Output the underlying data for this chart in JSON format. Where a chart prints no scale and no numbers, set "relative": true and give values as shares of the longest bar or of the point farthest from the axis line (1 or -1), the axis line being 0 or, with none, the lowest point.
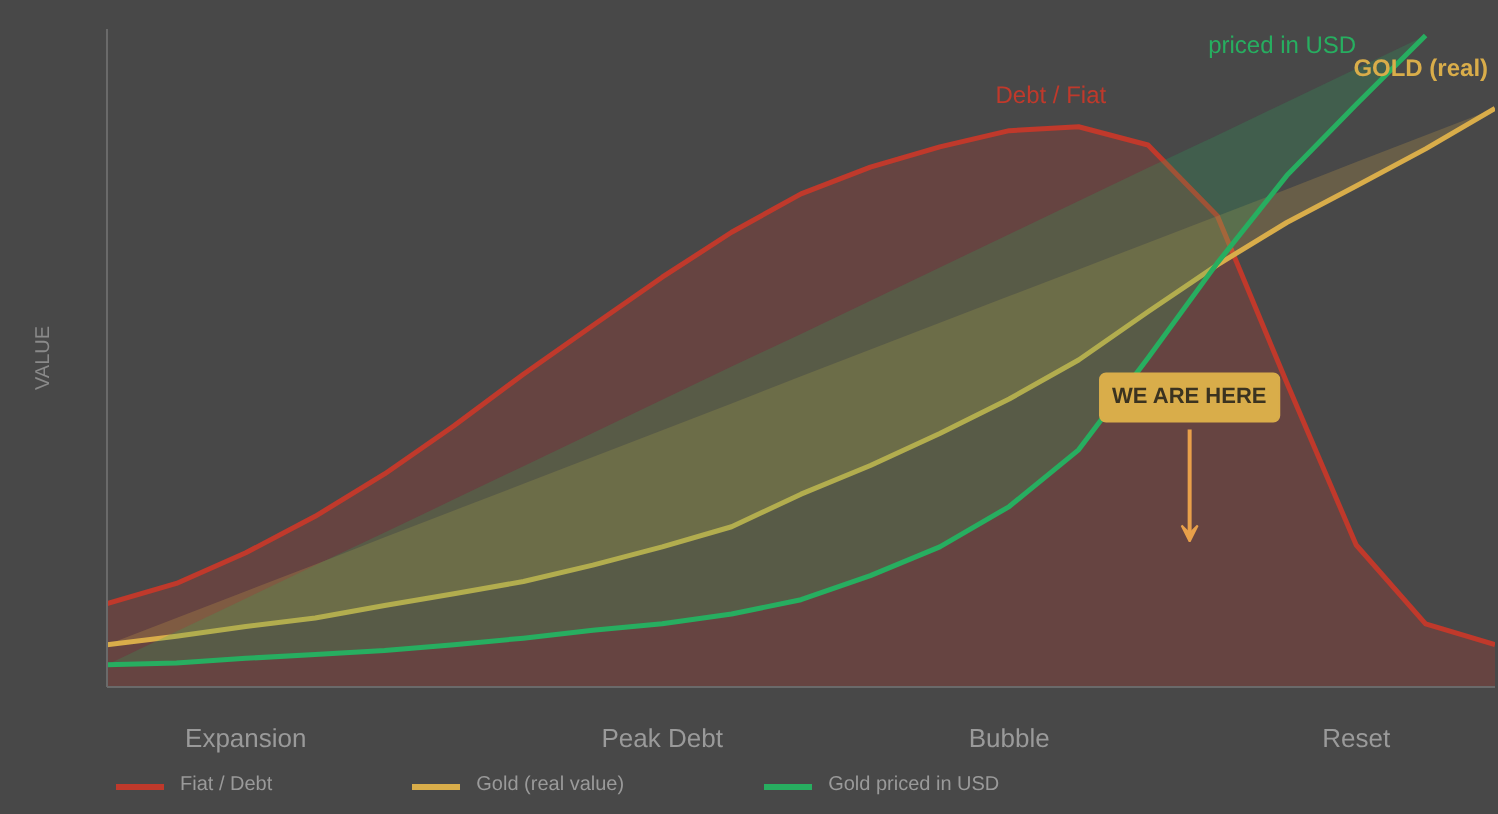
{
  "chart_data": {
    "type": "line",
    "relative": true,
    "ylabel": "VALUE",
    "categories": [
      null,
      null,
      "Expansion",
      null,
      null,
      null,
      null,
      null,
      "Peak Debt",
      null,
      null,
      null,
      null,
      "Bubble",
      null,
      null,
      null,
      null,
      "Reset",
      null,
      null
    ],
    "series": [
      {
        "name": "Fiat / Debt",
        "type": "area",
        "color": "#c0392b",
        "values": [
          0.128,
          0.159,
          0.206,
          0.262,
          0.327,
          0.401,
          0.48,
          0.555,
          0.629,
          0.698,
          0.757,
          0.798,
          0.829,
          0.854,
          0.86,
          0.832,
          0.723,
          0.467,
          0.218,
          0.097,
          0.065
        ]
      },
      {
        "name": "Gold (real value)",
        "color": "#d9ad4a",
        "values": [
          0.065,
          0.078,
          0.093,
          0.106,
          0.125,
          0.143,
          0.162,
          0.187,
          0.215,
          0.246,
          0.296,
          0.34,
          0.389,
          0.442,
          0.502,
          0.576,
          0.648,
          0.713,
          0.769,
          0.826,
          0.888
        ],
        "lower": [
          0.065,
          0.078,
          0.093,
          0.106,
          0.125,
          0.143,
          0.162,
          0.187,
          0.215,
          0.246,
          0.296,
          0.34,
          0.389,
          0.442,
          0.502,
          0.576,
          0.648,
          0.713,
          0.769,
          0.826,
          0.888
        ],
        "upper": [
          0.065,
          0.106,
          0.147,
          0.188,
          0.23,
          0.271,
          0.312,
          0.353,
          0.394,
          0.435,
          0.477,
          0.518,
          0.559,
          0.6,
          0.641,
          0.682,
          0.723,
          0.764,
          0.806,
          0.847,
          0.888
        ]
      },
      {
        "name": "Gold priced in USD",
        "color": "#27ae60",
        "values": [
          0.034,
          0.037,
          0.044,
          0.05,
          0.056,
          0.065,
          0.075,
          0.087,
          0.097,
          0.112,
          0.134,
          0.171,
          0.215,
          0.277,
          0.364,
          0.505,
          0.651,
          0.785,
          0.894,
          1.0,
          null
        ],
        "lower": [
          0.034,
          0.037,
          0.044,
          0.05,
          0.056,
          0.065,
          0.075,
          0.087,
          0.097,
          0.112,
          0.134,
          0.171,
          0.215,
          0.277,
          0.364,
          0.505,
          0.651,
          0.785,
          0.894,
          1.0,
          null
        ],
        "upper": [
          0.034,
          0.085,
          0.136,
          0.187,
          0.237,
          0.288,
          0.339,
          0.39,
          0.441,
          0.492,
          0.542,
          0.593,
          0.644,
          0.695,
          0.746,
          0.797,
          0.847,
          0.898,
          0.949,
          1.0,
          null
        ]
      }
    ],
    "annotations": [
      "Debt / Fiat",
      "GOLD (real)",
      "priced in USD",
      "WE ARE HERE"
    ],
    "legend": "bottom"
  }
}
